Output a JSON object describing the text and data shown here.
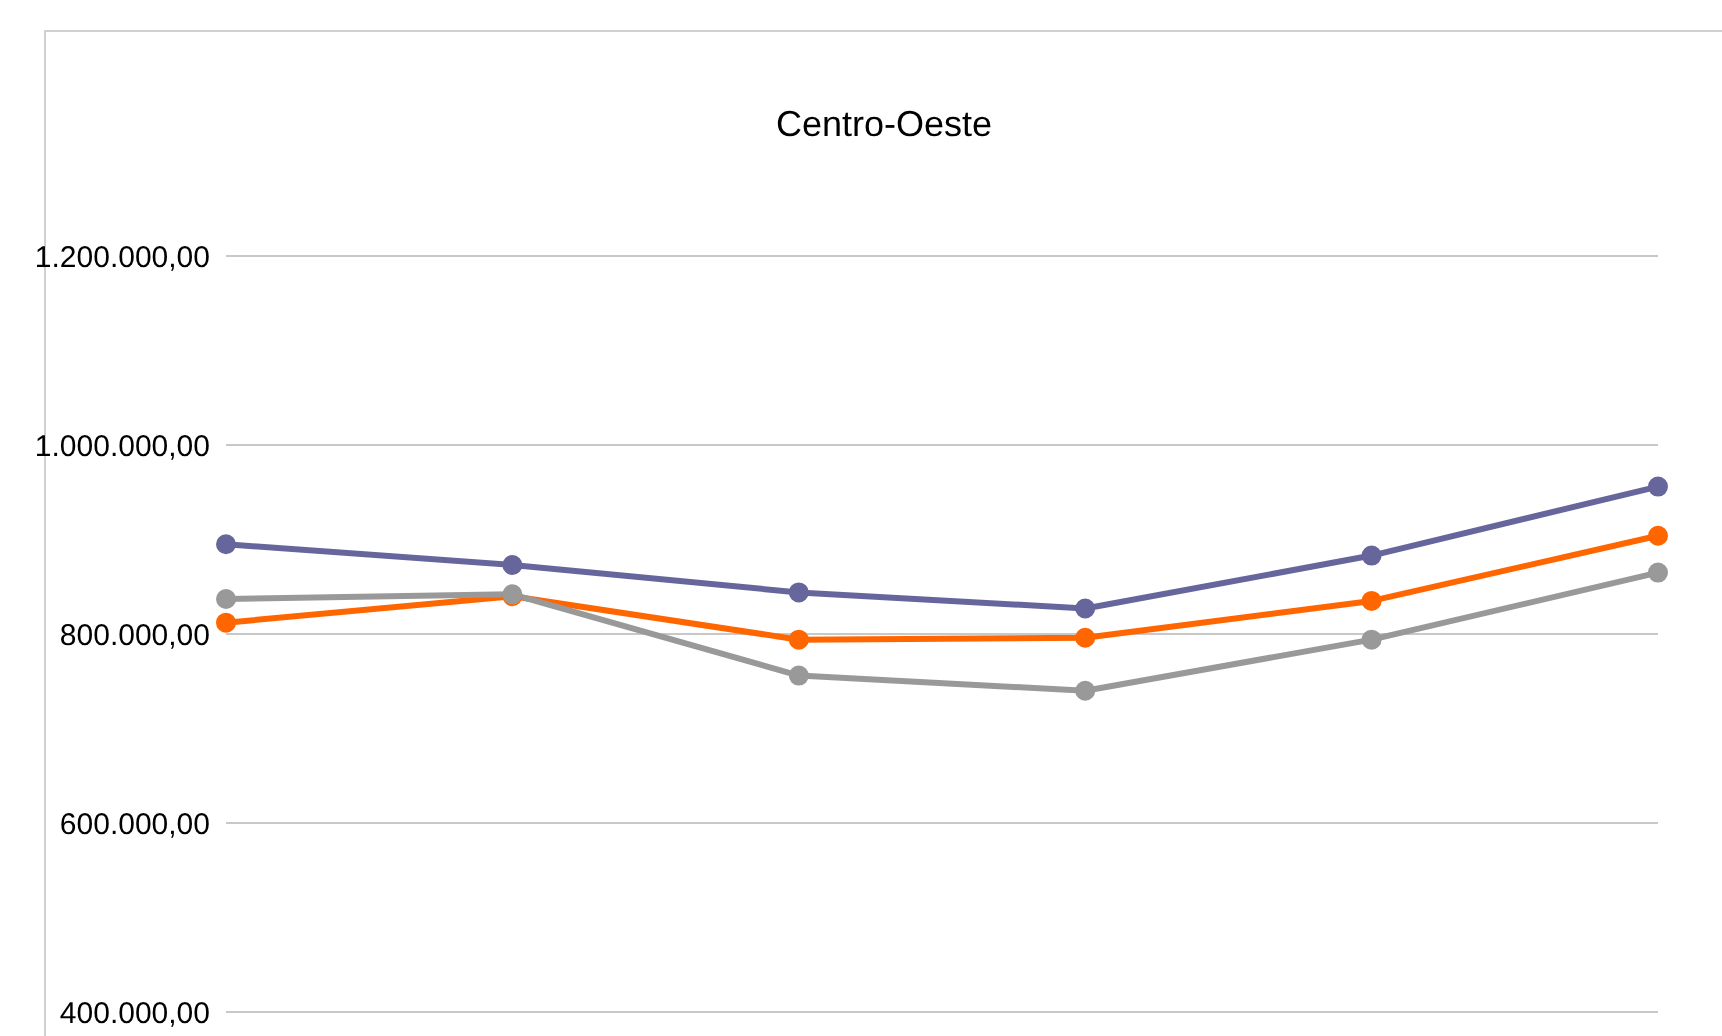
{
  "chart_data": {
    "type": "line",
    "title": "Centro-Oeste",
    "categories": [
      null,
      null,
      null,
      null,
      null,
      null
    ],
    "series": [
      {
        "color": "#67669c",
        "values": [
          895000,
          873000,
          844000,
          827000,
          883000,
          956000
        ]
      },
      {
        "color": "#ff6600",
        "values": [
          812000,
          840000,
          794000,
          796000,
          835000,
          904000
        ]
      },
      {
        "color": "#999999",
        "values": [
          837000,
          842000,
          756000,
          740000,
          794000,
          865000
        ]
      }
    ],
    "ylim": [
      400000,
      1200000
    ],
    "yticks": [
      {
        "value": 400000,
        "label": "400.000,00"
      },
      {
        "value": 600000,
        "label": "600.000,00"
      },
      {
        "value": 800000,
        "label": "800.000,00"
      },
      {
        "value": 1000000,
        "label": "1.000.000,00"
      },
      {
        "value": 1200000,
        "label": "1.200.000,00"
      }
    ],
    "grid": "y",
    "marker": "circle",
    "line_style": "solid",
    "legend": false
  }
}
